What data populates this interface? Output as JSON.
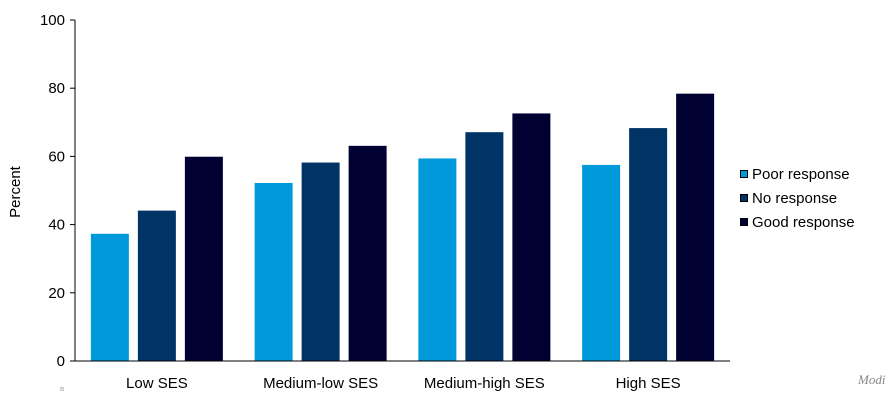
{
  "chart_data": {
    "type": "bar",
    "categories": [
      "Low SES",
      "Medium-low SES",
      "Medium-high SES",
      "High SES"
    ],
    "series": [
      {
        "name": "Poor response",
        "color": "#0099d9",
        "values": [
          37.3,
          52.2,
          59.4,
          57.5
        ]
      },
      {
        "name": "No response",
        "color": "#003366",
        "values": [
          44.1,
          58.2,
          67.1,
          68.3
        ]
      },
      {
        "name": "Good response",
        "color": "#000033",
        "values": [
          59.9,
          63.1,
          72.6,
          78.4
        ]
      }
    ],
    "ylabel": "Percent",
    "ylim": [
      0,
      100
    ],
    "yticks": [
      "0",
      "20",
      "40",
      "60",
      "80",
      "100"
    ],
    "grid": false,
    "legend_position": "right"
  },
  "footnote": "Modi",
  "corner_mark": "n"
}
